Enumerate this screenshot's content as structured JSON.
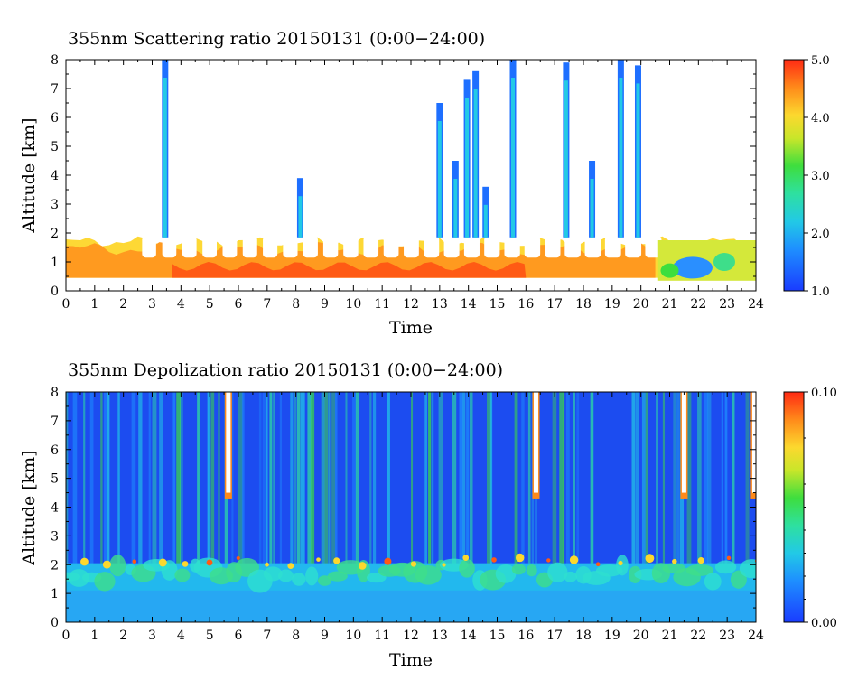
{
  "chart_data": [
    {
      "type": "heatmap",
      "title": "355nm Scattering ratio  20150131 (0:00−24:00)",
      "xlabel": "Time",
      "ylabel": "Altitude [km]",
      "xlim": [
        0,
        24
      ],
      "ylim": [
        0,
        8
      ],
      "x_ticks": [
        "0",
        "1",
        "2",
        "3",
        "4",
        "5",
        "6",
        "7",
        "8",
        "9",
        "10",
        "11",
        "12",
        "13",
        "14",
        "15",
        "16",
        "17",
        "18",
        "19",
        "20",
        "21",
        "22",
        "23",
        "24"
      ],
      "y_ticks": [
        "0",
        "1",
        "2",
        "3",
        "4",
        "5",
        "6",
        "7",
        "8"
      ],
      "colorbar": {
        "min": 1.0,
        "max": 5.0,
        "ticks": [
          "1.0",
          "2.0",
          "3.0",
          "4.0",
          "5.0"
        ]
      },
      "features": {
        "boundary_layer": "high scattering ratio (~4-5) from ~0.4 to ~1.8 km, 0-20.5 h; lower values (~2-3) in 20.5-24 h",
        "cloud_columns_center_hours": [
          3.45,
          8.15,
          13.0,
          13.55,
          13.95,
          14.25,
          14.6,
          15.55,
          17.4,
          18.3,
          19.3,
          19.9
        ],
        "cloud_columns_top_km": [
          8,
          3.9,
          6.5,
          4.5,
          7.3,
          7.6,
          3.6,
          8,
          7.9,
          4.5,
          8,
          7.8
        ]
      }
    },
    {
      "type": "heatmap",
      "title": "355nm Depolization ratio  20150131 (0:00−24:00)",
      "xlabel": "Time",
      "ylabel": "Altitude [km]",
      "xlim": [
        0,
        24
      ],
      "ylim": [
        0,
        8
      ],
      "x_ticks": [
        "0",
        "1",
        "2",
        "3",
        "4",
        "5",
        "6",
        "7",
        "8",
        "9",
        "10",
        "11",
        "12",
        "13",
        "14",
        "15",
        "16",
        "17",
        "18",
        "19",
        "20",
        "21",
        "22",
        "23",
        "24"
      ],
      "y_ticks": [
        "0",
        "1",
        "2",
        "3",
        "4",
        "5",
        "6",
        "7",
        "8"
      ],
      "colorbar": {
        "min": 0.0,
        "max": 0.1,
        "ticks": [
          "0.00",
          "0.10"
        ]
      },
      "features": {
        "low_layer": "depolarization ~0.03-0.05 below ~2 km",
        "high_depolarization_spikes_hours": [
          5.65,
          16.35,
          21.5,
          23.95
        ]
      }
    }
  ]
}
